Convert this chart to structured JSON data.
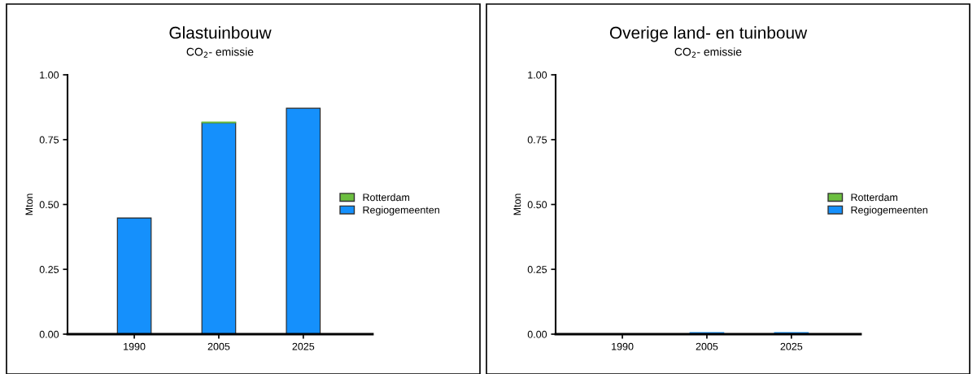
{
  "chart_data": [
    {
      "type": "bar",
      "title": "Glastuinbouw",
      "subtitle": "CO$_{2}$- emissie",
      "ylabel": "Mton",
      "categories": [
        "1990",
        "2005",
        "2025"
      ],
      "stacked": true,
      "legend": "right",
      "grid": false,
      "series": [
        {
          "name": "Regiogemeenten",
          "color": "#1590fc",
          "values": [
            0.448,
            0.815,
            0.871
          ]
        },
        {
          "name": "Rotterdam",
          "color": "#6cbf40",
          "values": [
            null,
            0.003,
            null
          ]
        }
      ],
      "ylim": [
        0,
        1
      ],
      "yticks": [
        {
          "value": 0,
          "label": "0.00"
        },
        {
          "value": 0.25,
          "label": "0.25"
        },
        {
          "value": 0.5,
          "label": "0.50"
        },
        {
          "value": 0.75,
          "label": "0.75"
        },
        {
          "value": 1,
          "label": "1.00"
        }
      ]
    },
    {
      "type": "bar",
      "title": "Overige land- en tuinbouw",
      "subtitle": "CO$_{2}$- emissie",
      "ylabel": "Mton",
      "categories": [
        "1990",
        "2005",
        "2025"
      ],
      "stacked": true,
      "legend": "right",
      "grid": false,
      "series": [
        {
          "name": "Regiogemeenten",
          "color": "#1590fc",
          "values": [
            null,
            0.006,
            0.006
          ]
        },
        {
          "name": "Rotterdam",
          "color": "#6cbf40",
          "values": [
            0.001,
            null,
            null
          ]
        }
      ],
      "ylim": [
        0,
        1
      ],
      "yticks": [
        {
          "value": 0,
          "label": "0.00"
        },
        {
          "value": 0.25,
          "label": "0.25"
        },
        {
          "value": 0.5,
          "label": "0.50"
        },
        {
          "value": 0.75,
          "label": "0.75"
        },
        {
          "value": 1,
          "label": "1.00"
        }
      ]
    }
  ]
}
